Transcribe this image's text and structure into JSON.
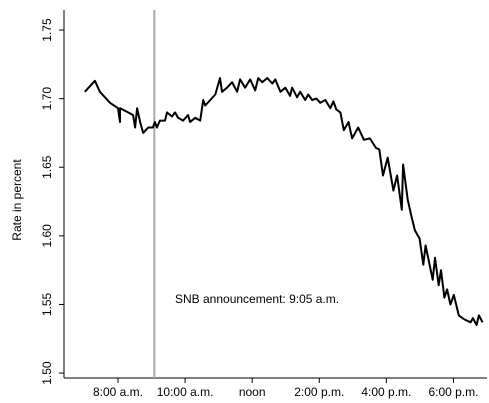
{
  "chart_data": {
    "type": "line",
    "y_label": "Rate in percent",
    "annotation": "SNB announcement: 9:05 a.m.",
    "announcement_x": 9.083,
    "announcement_color": "#aaaaaa",
    "color": "#000000",
    "x": [
      7.01,
      7.31,
      7.46,
      7.76,
      8.0,
      8.06,
      8.06,
      8.3,
      8.45,
      8.51,
      8.57,
      8.66,
      8.75,
      8.9,
      9.04,
      9.1,
      9.16,
      9.25,
      9.4,
      9.46,
      9.61,
      9.7,
      9.79,
      9.94,
      10.09,
      10.15,
      10.3,
      10.45,
      10.54,
      10.6,
      10.75,
      10.9,
      11.04,
      11.1,
      11.25,
      11.4,
      11.55,
      11.64,
      11.79,
      11.94,
      12.09,
      12.18,
      12.3,
      12.45,
      12.6,
      12.69,
      12.84,
      12.99,
      13.13,
      13.19,
      13.34,
      13.43,
      13.58,
      13.67,
      13.79,
      13.91,
      14.03,
      14.18,
      14.33,
      14.42,
      14.51,
      14.63,
      14.73,
      14.87,
      14.98,
      15.16,
      15.33,
      15.51,
      15.69,
      15.79,
      15.9,
      16.04,
      16.21,
      16.32,
      16.46,
      16.5,
      16.64,
      16.74,
      16.85,
      16.99,
      17.1,
      17.17,
      17.27,
      17.38,
      17.45,
      17.56,
      17.63,
      17.73,
      17.81,
      17.91,
      18.01,
      18.16,
      18.33,
      18.51,
      18.58,
      18.69,
      18.76,
      18.87
    ],
    "values": [
      1.705,
      1.713,
      1.705,
      1.697,
      1.693,
      1.683,
      1.693,
      1.69,
      1.688,
      1.679,
      1.693,
      1.683,
      1.675,
      1.679,
      1.679,
      1.683,
      1.679,
      1.684,
      1.684,
      1.69,
      1.687,
      1.69,
      1.686,
      1.684,
      1.688,
      1.683,
      1.686,
      1.684,
      1.699,
      1.695,
      1.699,
      1.703,
      1.715,
      1.705,
      1.708,
      1.712,
      1.705,
      1.714,
      1.708,
      1.714,
      1.706,
      1.715,
      1.712,
      1.715,
      1.711,
      1.714,
      1.705,
      1.708,
      1.702,
      1.708,
      1.701,
      1.705,
      1.699,
      1.703,
      1.699,
      1.7,
      1.697,
      1.699,
      1.693,
      1.698,
      1.692,
      1.69,
      1.677,
      1.683,
      1.671,
      1.679,
      1.67,
      1.671,
      1.664,
      1.663,
      1.644,
      1.657,
      1.633,
      1.644,
      1.619,
      1.652,
      1.626,
      1.615,
      1.604,
      1.598,
      1.579,
      1.593,
      1.581,
      1.568,
      1.584,
      1.564,
      1.575,
      1.555,
      1.561,
      1.55,
      1.557,
      1.542,
      1.539,
      1.537,
      1.54,
      1.535,
      1.542,
      1.537
    ],
    "xlim": [
      6.39,
      19.0
    ],
    "xticks": [
      {
        "value": 8,
        "label": "8:00 a.m."
      },
      {
        "value": 10,
        "label": "10:00 a.m."
      },
      {
        "value": 12,
        "label": "noon"
      },
      {
        "value": 14,
        "label": "2:00 p.m."
      },
      {
        "value": 16,
        "label": "4:00 p.m."
      },
      {
        "value": 18,
        "label": "6:00 p.m."
      }
    ],
    "ylim": [
      1.4964,
      1.7646
    ],
    "yticks": [
      {
        "value": 1.5,
        "label": "1.50"
      },
      1.55,
      {
        "value": 1.6,
        "label": "1.60"
      },
      1.65,
      {
        "value": 1.7,
        "label": "1.70"
      },
      1.75
    ]
  }
}
